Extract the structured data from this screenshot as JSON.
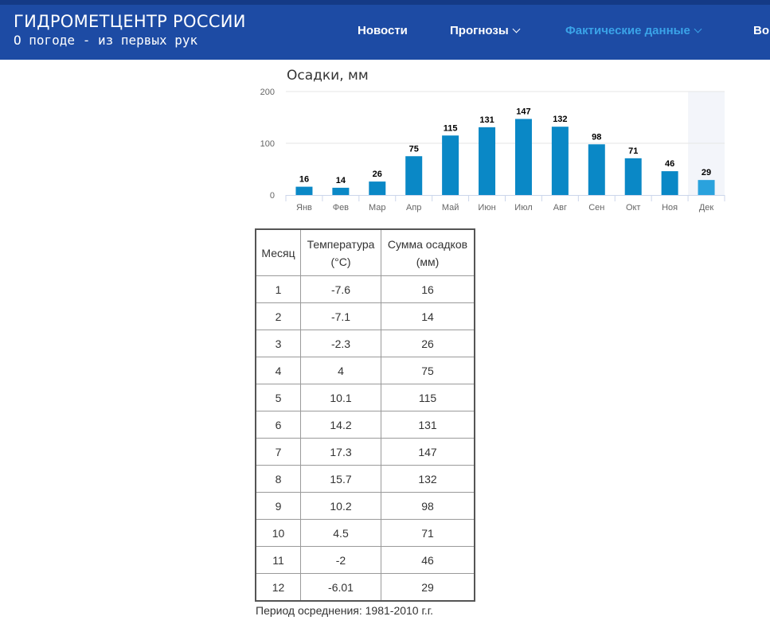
{
  "header": {
    "brand_title": "ГИДРОМЕТЦЕНТР РОССИИ",
    "brand_subtitle": "О погоде - из первых рук",
    "nav": [
      {
        "label": "Новости",
        "dropdown": false,
        "active": false
      },
      {
        "label": "Прогнозы",
        "dropdown": true,
        "active": false
      },
      {
        "label": "Фактические данные",
        "dropdown": true,
        "active": true
      },
      {
        "label": "Во",
        "dropdown": false,
        "active": false
      }
    ],
    "colors": {
      "bar": "#1d4ba4",
      "active_link": "#3aa3e8"
    }
  },
  "chart_data": {
    "type": "bar",
    "title": "Осадки, мм",
    "categories": [
      "Янв",
      "Фев",
      "Мар",
      "Апр",
      "Май",
      "Июн",
      "Июл",
      "Авг",
      "Сен",
      "Окт",
      "Ноя",
      "Дек"
    ],
    "values": [
      16,
      14,
      26,
      75,
      115,
      131,
      147,
      132,
      98,
      71,
      46,
      29
    ],
    "ylim": [
      0,
      200
    ],
    "yticks": [
      0,
      100,
      200
    ],
    "highlighted_category": "Дек",
    "grid": true,
    "colors": {
      "bar": "#0a88c6",
      "bar_highlight": "#2aa2dd",
      "highlight_band": "#f3f5fa"
    }
  },
  "table": {
    "headers": [
      [
        "Месяц"
      ],
      [
        "Температура",
        "(°C)"
      ],
      [
        "Сумма осадков",
        "(мм)"
      ]
    ],
    "rows": [
      [
        "1",
        "-7.6",
        "16"
      ],
      [
        "2",
        "-7.1",
        "14"
      ],
      [
        "3",
        "-2.3",
        "26"
      ],
      [
        "4",
        "4",
        "75"
      ],
      [
        "5",
        "10.1",
        "115"
      ],
      [
        "6",
        "14.2",
        "131"
      ],
      [
        "7",
        "17.3",
        "147"
      ],
      [
        "8",
        "15.7",
        "132"
      ],
      [
        "9",
        "10.2",
        "98"
      ],
      [
        "10",
        "4.5",
        "71"
      ],
      [
        "11",
        "-2",
        "46"
      ],
      [
        "12",
        "-6.01",
        "29"
      ]
    ]
  },
  "footnote": "Период осреднения: 1981-2010 г.г."
}
